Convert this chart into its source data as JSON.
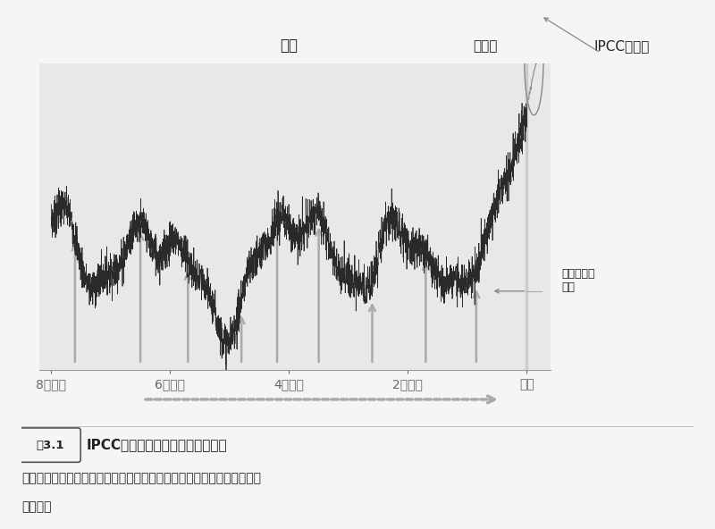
{
  "title_hyoki": "氷期",
  "title_ondan": "温暖期",
  "title_ipcc": "IPCCの予測",
  "label_kisho": "気象観測の\n歴史",
  "x_labels": [
    "8万年前",
    "6万年前",
    "4万年前",
    "2万年前",
    "現代"
  ],
  "x_ticks": [
    -80000,
    -60000,
    -40000,
    -20000,
    0
  ],
  "x_min": -82000,
  "x_max": 4000,
  "fig_label": "図3.1",
  "fig_title": "IPCC予測と過去の気候変動の比較",
  "fig_body1": "これからの地球は、今までとは「まったく違った状態」に突入するのだ",
  "fig_body2": "ろうか。",
  "bg_color": "#f5f5f5",
  "plot_bg": "#e8e8e8",
  "arrow_color": "#aaaaaa",
  "line_color": "#2a2a2a",
  "future_color": "#888888",
  "vline_color": "#cccccc",
  "text_color": "#222222"
}
